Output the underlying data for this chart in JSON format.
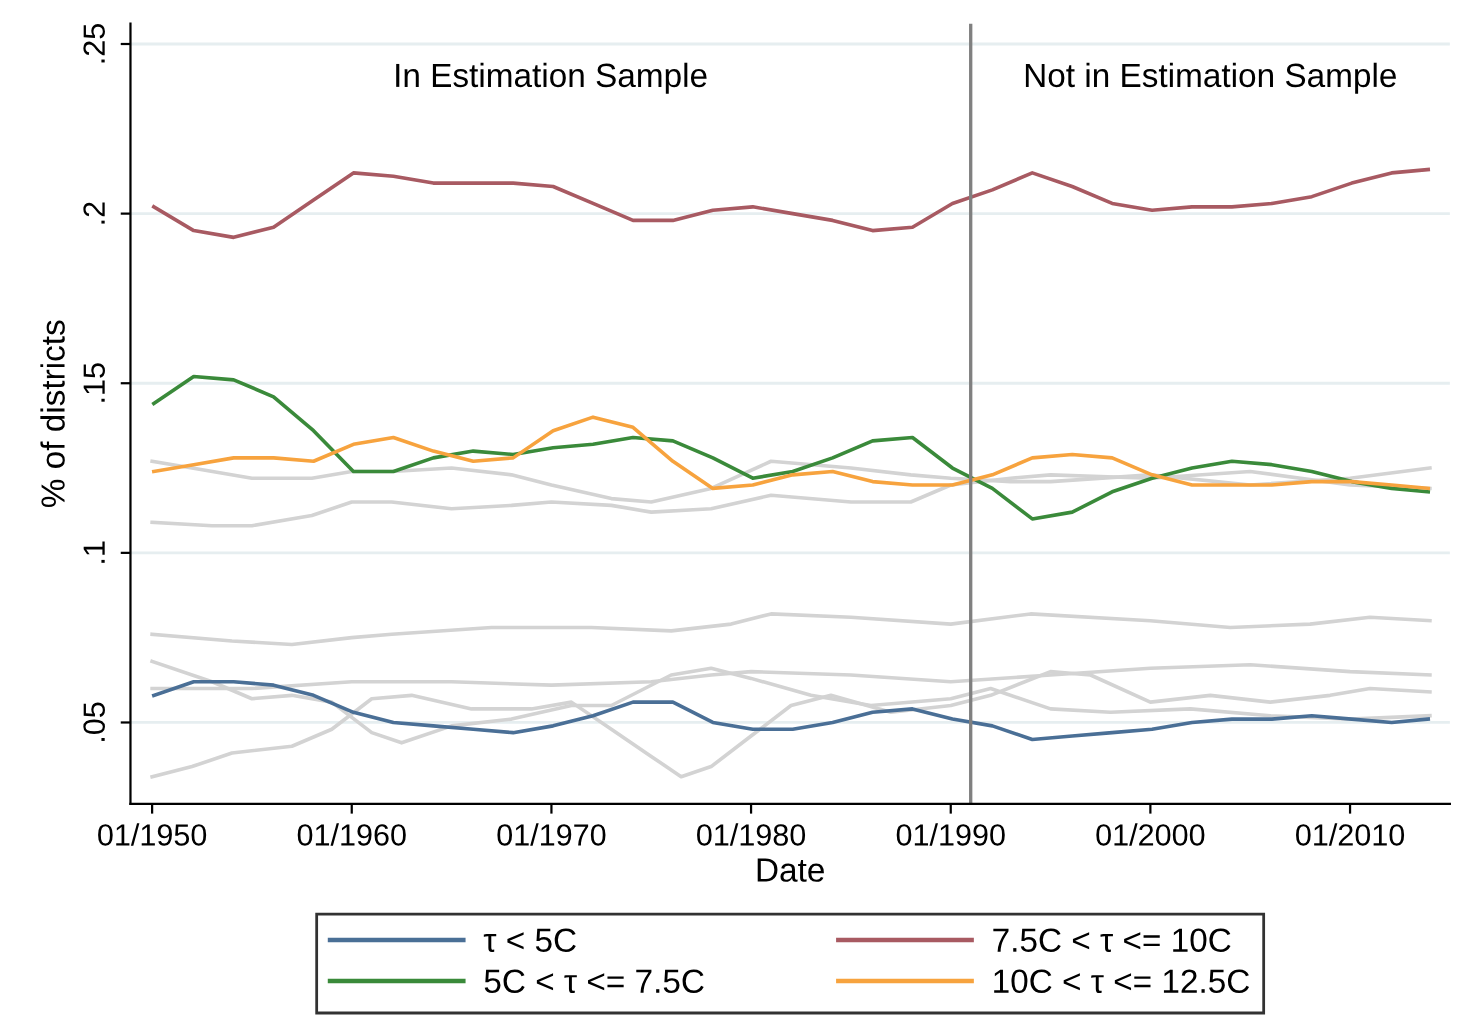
{
  "chart_data": {
    "type": "line",
    "xlabel": "Date",
    "ylabel": "% of districts",
    "x": [
      "1950-02",
      "1952-02",
      "1954-02",
      "1956-02",
      "1958-02",
      "1960-02",
      "1962-02",
      "1964-02",
      "1966-02",
      "1968-02",
      "1970-02",
      "1972-02",
      "1974-02",
      "1976-02",
      "1978-02",
      "1980-02",
      "1982-02",
      "1984-02",
      "1986-02",
      "1988-02",
      "1990-02",
      "1992-02",
      "1994-02",
      "1996-02",
      "1998-02",
      "2000-02",
      "2002-02",
      "2004-02",
      "2006-02",
      "2008-02",
      "2010-02",
      "2012-02",
      "2013-12"
    ],
    "series": [
      {
        "color": "#d3d3d3",
        "x": [
          "1950-01",
          "1952-01",
          "1955-01",
          "1958-01",
          "1960-01",
          "1962-01",
          "1965-01",
          "1968-01",
          "1970-01",
          "1973-01",
          "1975-01",
          "1978-01",
          "1981-01",
          "1985-01",
          "1988-01",
          "1990-01",
          "1993-01",
          "1995-01",
          "2000-01",
          "2005-01",
          "2010-01",
          "2014-01"
        ],
        "values": [
          0.127,
          0.125,
          0.122,
          0.122,
          0.124,
          0.124,
          0.125,
          0.123,
          0.12,
          0.116,
          0.115,
          0.119,
          0.127,
          0.125,
          0.123,
          0.122,
          0.121,
          0.121,
          0.123,
          0.12,
          0.122,
          0.125
        ]
      },
      {
        "color": "#d3d3d3",
        "x": [
          "1950-01",
          "1953-01",
          "1955-01",
          "1958-01",
          "1960-01",
          "1962-01",
          "1965-01",
          "1968-01",
          "1970-01",
          "1973-01",
          "1975-01",
          "1978-01",
          "1981-01",
          "1985-01",
          "1988-01",
          "1990-01",
          "1993-01",
          "1995-01",
          "2000-01",
          "2005-01",
          "2010-01",
          "2014-01"
        ],
        "values": [
          0.109,
          0.108,
          0.108,
          0.111,
          0.115,
          0.115,
          0.113,
          0.114,
          0.115,
          0.114,
          0.112,
          0.113,
          0.117,
          0.115,
          0.115,
          0.12,
          0.122,
          0.123,
          0.122,
          0.124,
          0.12,
          0.119
        ]
      },
      {
        "color": "#d3d3d3",
        "x": [
          "1950-01",
          "1954-01",
          "1957-01",
          "1960-01",
          "1962-01",
          "1967-01",
          "1972-01",
          "1976-01",
          "1979-01",
          "1981-01",
          "1985-01",
          "1990-01",
          "1994-01",
          "2000-01",
          "2004-01",
          "2008-01",
          "2011-01",
          "2014-01"
        ],
        "values": [
          0.076,
          0.074,
          0.073,
          0.075,
          0.076,
          0.078,
          0.078,
          0.077,
          0.079,
          0.082,
          0.081,
          0.079,
          0.082,
          0.08,
          0.078,
          0.079,
          0.081,
          0.08
        ]
      },
      {
        "color": "#d3d3d3",
        "x": [
          "1950-01",
          "1955-01",
          "1960-01",
          "1965-01",
          "1970-01",
          "1975-01",
          "1978-01",
          "1980-01",
          "1985-01",
          "1990-01",
          "1995-01",
          "2000-01",
          "2005-01",
          "2010-01",
          "2014-01"
        ],
        "values": [
          0.06,
          0.06,
          0.062,
          0.062,
          0.061,
          0.062,
          0.064,
          0.065,
          0.064,
          0.062,
          0.064,
          0.066,
          0.067,
          0.065,
          0.064
        ]
      },
      {
        "color": "#d3d3d3",
        "x": [
          "1950-01",
          "1953-01",
          "1955-01",
          "1957-01",
          "1959-01",
          "1961-01",
          "1962-07",
          "1965-01",
          "1968-01",
          "1971-01",
          "1973-01",
          "1976-01",
          "1978-01",
          "1980-01",
          "1983-01",
          "1986-01",
          "1990-01",
          "1992-01",
          "1995-01",
          "1998-01",
          "2002-01",
          "2006-01",
          "2010-01",
          "2014-01"
        ],
        "values": [
          0.068,
          0.062,
          0.057,
          0.058,
          0.056,
          0.047,
          0.044,
          0.049,
          0.051,
          0.055,
          0.055,
          0.064,
          0.066,
          0.063,
          0.058,
          0.055,
          0.057,
          0.06,
          0.054,
          0.053,
          0.054,
          0.052,
          0.051,
          0.052
        ]
      },
      {
        "color": "#d3d3d3",
        "x": [
          "1950-01",
          "1952-01",
          "1954-01",
          "1957-01",
          "1959-01",
          "1961-01",
          "1963-01",
          "1966-01",
          "1969-01",
          "1971-01",
          "1973-01",
          "1975-01",
          "1976-07",
          "1978-01",
          "1980-01",
          "1982-01",
          "1984-01",
          "1987-01",
          "1990-01",
          "1992-01",
          "1995-01",
          "1997-01",
          "2000-01",
          "2003-01",
          "2006-01",
          "2009-01",
          "2011-01",
          "2014-01"
        ],
        "values": [
          0.034,
          0.037,
          0.041,
          0.043,
          0.048,
          0.057,
          0.058,
          0.054,
          0.054,
          0.056,
          0.048,
          0.04,
          0.034,
          0.037,
          0.046,
          0.055,
          0.058,
          0.053,
          0.055,
          0.058,
          0.065,
          0.064,
          0.056,
          0.058,
          0.056,
          0.058,
          0.06,
          0.059
        ]
      },
      {
        "name": "τ < 5C",
        "color": "#4a6f96",
        "values": [
          0.058,
          0.062,
          0.062,
          0.061,
          0.058,
          0.053,
          0.05,
          0.049,
          0.048,
          0.047,
          0.049,
          0.052,
          0.056,
          0.056,
          0.05,
          0.048,
          0.048,
          0.05,
          0.053,
          0.054,
          0.051,
          0.049,
          0.045,
          0.046,
          0.047,
          0.048,
          0.05,
          0.051,
          0.051,
          0.052,
          0.051,
          0.05,
          0.051
        ]
      },
      {
        "name": "5C < τ <= 7.5C",
        "color": "#3a8a3a",
        "values": [
          0.144,
          0.152,
          0.151,
          0.146,
          0.136,
          0.124,
          0.124,
          0.128,
          0.13,
          0.129,
          0.131,
          0.132,
          0.134,
          0.133,
          0.128,
          0.122,
          0.124,
          0.128,
          0.133,
          0.134,
          0.125,
          0.119,
          0.11,
          0.112,
          0.118,
          0.122,
          0.125,
          0.127,
          0.126,
          0.124,
          0.121,
          0.119,
          0.118
        ]
      },
      {
        "name": "7.5C < τ <= 10C",
        "color": "#a85a62",
        "values": [
          0.202,
          0.195,
          0.193,
          0.196,
          0.204,
          0.212,
          0.211,
          0.209,
          0.209,
          0.209,
          0.208,
          0.203,
          0.198,
          0.198,
          0.201,
          0.202,
          0.2,
          0.198,
          0.195,
          0.196,
          0.203,
          0.207,
          0.212,
          0.208,
          0.203,
          0.201,
          0.202,
          0.202,
          0.203,
          0.205,
          0.209,
          0.212,
          0.213
        ]
      },
      {
        "name": "10C < τ <= 12.5C",
        "color": "#f7a33e",
        "values": [
          0.124,
          0.126,
          0.128,
          0.128,
          0.127,
          0.132,
          0.134,
          0.13,
          0.127,
          0.128,
          0.136,
          0.14,
          0.137,
          0.127,
          0.119,
          0.12,
          0.123,
          0.124,
          0.121,
          0.12,
          0.12,
          0.123,
          0.128,
          0.129,
          0.128,
          0.123,
          0.12,
          0.12,
          0.12,
          0.121,
          0.121,
          0.12,
          0.119
        ]
      }
    ],
    "xlim": [
      "1948-12",
      "2015-01"
    ],
    "xticks": [
      {
        "value": "1950-01",
        "label": "01/1950"
      },
      {
        "value": "1960-01",
        "label": "01/1960"
      },
      {
        "value": "1970-01",
        "label": "01/1970"
      },
      {
        "value": "1980-01",
        "label": "01/1980"
      },
      {
        "value": "1990-01",
        "label": "01/1990"
      },
      {
        "value": "2000-01",
        "label": "01/2000"
      },
      {
        "value": "2010-01",
        "label": "01/2010"
      }
    ],
    "ylim": [
      0.026,
      0.256
    ],
    "yticks": [
      {
        "value": 0.05,
        "label": ".05"
      },
      {
        "value": 0.1,
        "label": ".1"
      },
      {
        "value": 0.15,
        "label": ".15"
      },
      {
        "value": 0.2,
        "label": ".2"
      },
      {
        "value": 0.25,
        "label": ".25"
      }
    ],
    "ref_lines": [
      {
        "axis": "x",
        "value": "1991-01",
        "color": "#808080"
      }
    ],
    "annotations": [
      "In Estimation Sample",
      "Not in Estimation Sample"
    ],
    "grid": "y",
    "legend": "bottom",
    "marker": "none",
    "line_style": "solid"
  }
}
